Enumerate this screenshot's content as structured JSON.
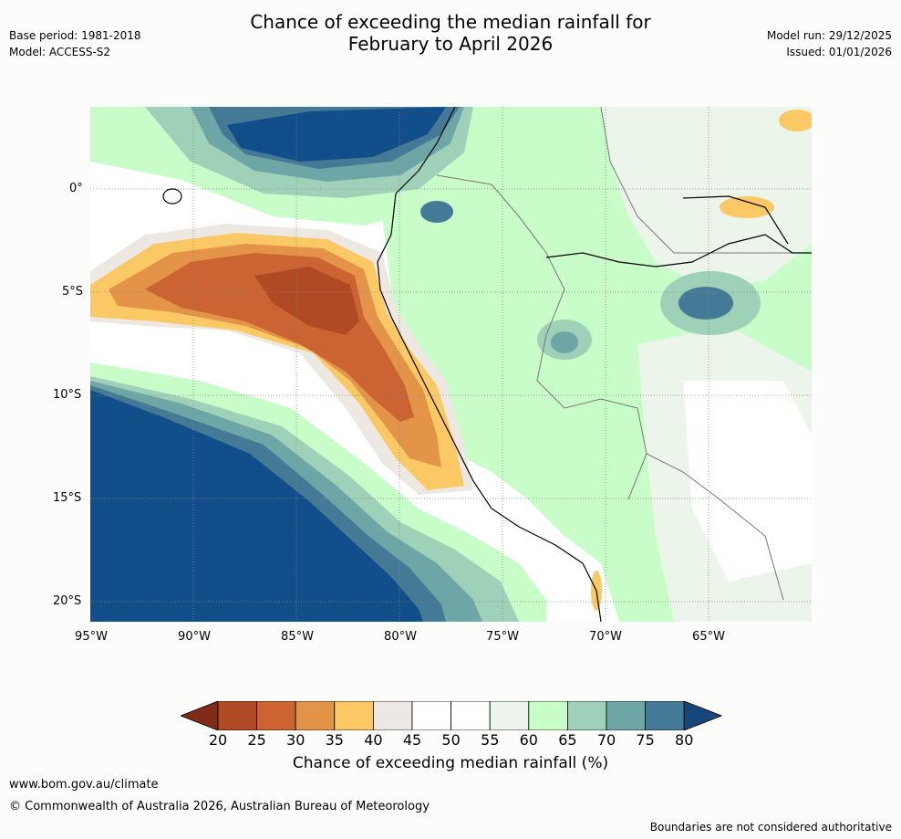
{
  "header": {
    "title_line1": "Chance of exceeding the median rainfall for",
    "title_line2": "February to April 2026",
    "base_period": "Base period: 1981-2018",
    "model": "Model: ACCESS-S2",
    "model_run": "Model run: 29/12/2025",
    "issued": "Issued: 01/01/2026"
  },
  "map": {
    "lat_labels": [
      "0°",
      "5°S",
      "10°S",
      "15°S",
      "20°S"
    ],
    "lon_labels": [
      "95°W",
      "90°W",
      "85°W",
      "80°W",
      "75°W",
      "70°W",
      "65°W"
    ]
  },
  "colorbar": {
    "label": "Chance of exceeding median rainfall (%)",
    "ticks": [
      "20",
      "25",
      "30",
      "35",
      "40",
      "45",
      "50",
      "55",
      "60",
      "65",
      "70",
      "75",
      "80"
    ],
    "low_extend_color": "#7e2b17",
    "high_extend_color": "#17467d",
    "bin_colors": [
      "#b04a24",
      "#cc6332",
      "#e39448",
      "#fbc866",
      "#ede8e2",
      "#ffffff",
      "#ffffff",
      "#ecf5ea",
      "#c8fcc8",
      "#9ed1b7",
      "#6ea5a6",
      "#447a95"
    ]
  },
  "footer": {
    "url": "www.bom.gov.au/climate",
    "copyright": "© Commonwealth of Australia 2026, Australian Bureau of Meteorology",
    "disclaimer": "Boundaries are not considered authoritative"
  }
}
